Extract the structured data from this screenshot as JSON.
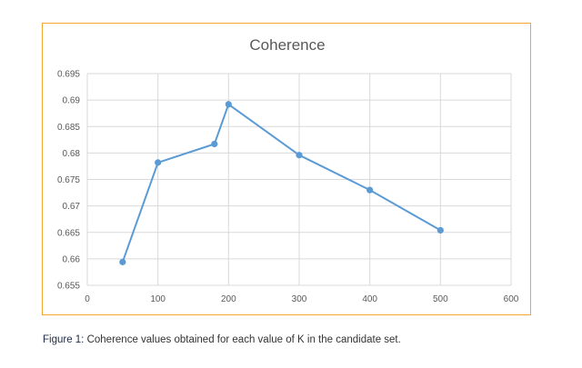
{
  "caption": {
    "label": "Figure 1:",
    "text": " Coherence values obtained for each value of K in the candidate set."
  },
  "colors": {
    "frame_border": "#f0a830",
    "series_line": "#5b9bd5",
    "gridline": "#d9d9d9",
    "text": "#595959"
  },
  "chart_data": {
    "type": "line",
    "title": "Coherence",
    "xlabel": "",
    "ylabel": "",
    "xlim": [
      0,
      600
    ],
    "ylim": [
      0.655,
      0.695
    ],
    "x_ticks": [
      "0",
      "100",
      "200",
      "300",
      "400",
      "500",
      "600"
    ],
    "y_ticks": [
      "0.655",
      "0.66",
      "0.665",
      "0.67",
      "0.675",
      "0.68",
      "0.685",
      "0.69",
      "0.695"
    ],
    "grid": true,
    "legend": "none",
    "series": [
      {
        "x": [
          50,
          100,
          180,
          200,
          300,
          400,
          500
        ],
        "y": [
          0.6594,
          0.6782,
          0.6817,
          0.6892,
          0.6796,
          0.673,
          0.6654
        ]
      }
    ]
  }
}
